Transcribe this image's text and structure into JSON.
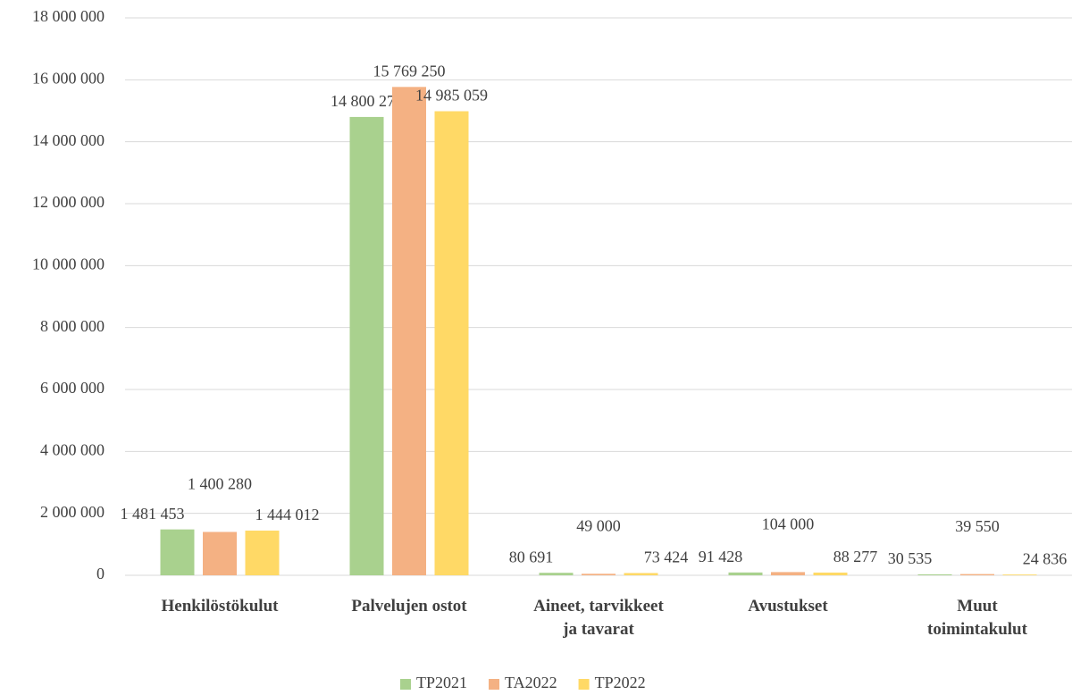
{
  "chart_data": {
    "type": "bar",
    "categories": [
      "Henkilöstökulut",
      "Palvelujen ostot",
      "Aineet, tarvikkeet\nja tavarat",
      "Avustukset",
      "Muut\ntoimintakulut"
    ],
    "series": [
      {
        "name": "TP2021",
        "color": "#a9d18e",
        "values": [
          1481453,
          14800276,
          80691,
          91428,
          30535
        ],
        "value_labels": [
          "1 481 453",
          "14 800 276",
          "80 691",
          "91 428",
          "30 535"
        ]
      },
      {
        "name": "TA2022",
        "color": "#f4b183",
        "values": [
          1400280,
          15769250,
          49000,
          104000,
          39550
        ],
        "value_labels": [
          "1 400 280",
          "15 769 250",
          "49 000",
          "104 000",
          "39 550"
        ]
      },
      {
        "name": "TP2022",
        "color": "#ffd966",
        "values": [
          1444012,
          14985059,
          73424,
          88277,
          24836
        ],
        "value_labels": [
          "1 444 012",
          "14 985 059",
          "73 424",
          "88 277",
          "24 836"
        ]
      }
    ],
    "ylim": [
      0,
      18000000
    ],
    "yticks": [
      {
        "value": 0,
        "label": "0"
      },
      {
        "value": 2000000,
        "label": "2 000 000"
      },
      {
        "value": 4000000,
        "label": "4 000 000"
      },
      {
        "value": 6000000,
        "label": "6 000 000"
      },
      {
        "value": 8000000,
        "label": "8 000 000"
      },
      {
        "value": 10000000,
        "label": "10 000 000"
      },
      {
        "value": 12000000,
        "label": "12 000 000"
      },
      {
        "value": 14000000,
        "label": "14 000 000"
      },
      {
        "value": 16000000,
        "label": "16 000 000"
      },
      {
        "value": 18000000,
        "label": "18 000 000"
      }
    ],
    "grid": true,
    "legend": "bottom"
  }
}
